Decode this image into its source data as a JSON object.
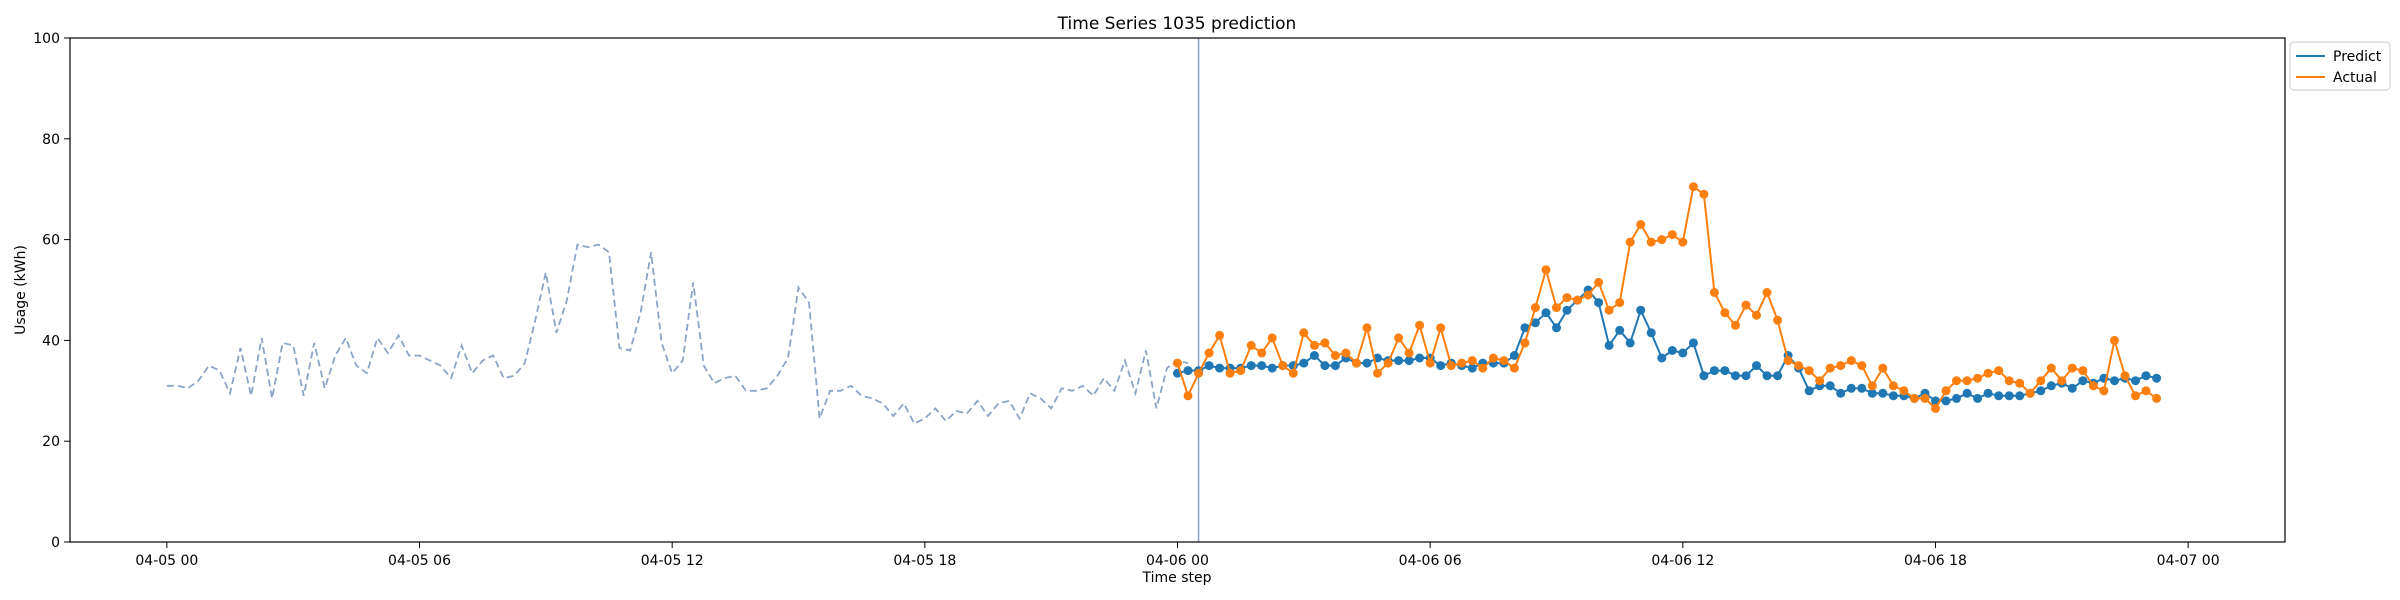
{
  "chart_data": {
    "type": "line",
    "title": "Time Series 1035 prediction",
    "xlabel": "Time step",
    "ylabel": "Usage (kWh)",
    "ylim": [
      0,
      100
    ],
    "yticks": [
      0,
      20,
      40,
      60,
      80,
      100
    ],
    "xlim_hours": [
      -2.3,
      50.3
    ],
    "xticks": [
      {
        "label": "04-05 00",
        "hour": 0
      },
      {
        "label": "04-05 06",
        "hour": 6
      },
      {
        "label": "04-05 12",
        "hour": 12
      },
      {
        "label": "04-05 18",
        "hour": 18
      },
      {
        "label": "04-06 00",
        "hour": 24
      },
      {
        "label": "04-06 06",
        "hour": 30
      },
      {
        "label": "04-06 12",
        "hour": 36
      },
      {
        "label": "04-06 18",
        "hour": 42
      },
      {
        "label": "04-07 00",
        "hour": 48
      }
    ],
    "forecast_start_hour": 24.5,
    "grid": false,
    "legend_placement": "outside-top-right",
    "colors": {
      "history": "#8aa4c8",
      "predict": "#1f77b4",
      "actual": "#ff7f0e",
      "divider": "#8aa4c8"
    },
    "history": {
      "start_hour": 0,
      "step_hours": 0.25,
      "values": [
        31,
        31,
        30.5,
        32,
        35,
        34,
        29.5,
        38.5,
        29,
        40.5,
        28.5,
        39.5,
        39,
        29,
        39.5,
        30.5,
        37,
        40.5,
        35,
        33.5,
        40.5,
        37.5,
        41,
        37,
        37,
        36,
        35,
        32.5,
        39,
        33.5,
        36,
        37,
        32.5,
        33,
        35.5,
        44,
        53.5,
        41.5,
        48,
        59,
        58.5,
        59,
        57.5,
        38.5,
        38,
        45.5,
        57.5,
        39.5,
        33.5,
        36,
        51.5,
        35,
        31.5,
        32.5,
        33,
        30,
        30,
        30.5,
        33,
        36.5,
        50.5,
        47.5,
        24.5,
        30,
        30,
        31,
        29,
        28.5,
        27.5,
        25,
        27.5,
        23.5,
        24.5,
        26.5,
        24,
        26,
        25.5,
        28,
        25,
        27.5,
        28,
        24.5,
        29.5,
        28.5,
        26.5,
        30.5,
        30,
        31,
        29,
        32.5,
        30,
        36,
        29.5,
        38,
        26.5,
        34.5,
        36,
        35.5
      ]
    },
    "series": [
      {
        "name": "Predict",
        "start_hour": 24.0,
        "step_hours": 0.25,
        "values": [
          33.5,
          34,
          34,
          35,
          34.5,
          34.5,
          34.5,
          35,
          35,
          34.5,
          35,
          35,
          35.5,
          37,
          35,
          35,
          36.5,
          35.5,
          35.5,
          36.5,
          36,
          36,
          36,
          36.5,
          36.5,
          35,
          35.5,
          35,
          34.5,
          35.5,
          35.5,
          35.5,
          37,
          42.5,
          43.5,
          45.5,
          42.5,
          46,
          48,
          50,
          47.5,
          39,
          42,
          39.5,
          46,
          41.5,
          36.5,
          38,
          37.5,
          39.5,
          33,
          34,
          34,
          33,
          33,
          35,
          33,
          33,
          37,
          34.5,
          30,
          31,
          31,
          29.5,
          30.5,
          30.5,
          29.5,
          29.5,
          29,
          29,
          28.5,
          29.5,
          28,
          28,
          28.5,
          29.5,
          28.5,
          29.5,
          29,
          29,
          29,
          29.5,
          30,
          31,
          31.5,
          30.5,
          32,
          31.5,
          32.5,
          32,
          32.5,
          32,
          33,
          32.5
        ]
      },
      {
        "name": "Actual",
        "start_hour": 24.0,
        "step_hours": 0.25,
        "values": [
          35.5,
          29,
          33.5,
          37.5,
          41,
          33.5,
          34,
          39,
          37.5,
          40.5,
          35,
          33.5,
          41.5,
          39,
          39.5,
          37,
          37.5,
          35.5,
          42.5,
          33.5,
          35.5,
          40.5,
          37.5,
          43,
          35.5,
          42.5,
          35,
          35.5,
          36,
          34.5,
          36.5,
          36,
          34.5,
          39.5,
          46.5,
          54,
          46.5,
          48.5,
          48,
          49,
          51.5,
          46,
          47.5,
          59.5,
          63,
          59.5,
          60,
          61,
          59.5,
          70.5,
          69,
          49.5,
          45.5,
          43,
          47,
          45,
          49.5,
          44,
          36,
          35,
          34,
          32,
          34.5,
          35,
          36,
          35,
          31,
          34.5,
          31,
          30,
          28.5,
          28.5,
          26.5,
          30,
          32,
          32,
          32.5,
          33.5,
          34,
          32,
          31.5,
          29.5,
          32,
          34.5,
          32,
          34.5,
          34,
          31,
          30,
          40,
          33,
          29,
          30,
          28.5
        ]
      }
    ]
  }
}
